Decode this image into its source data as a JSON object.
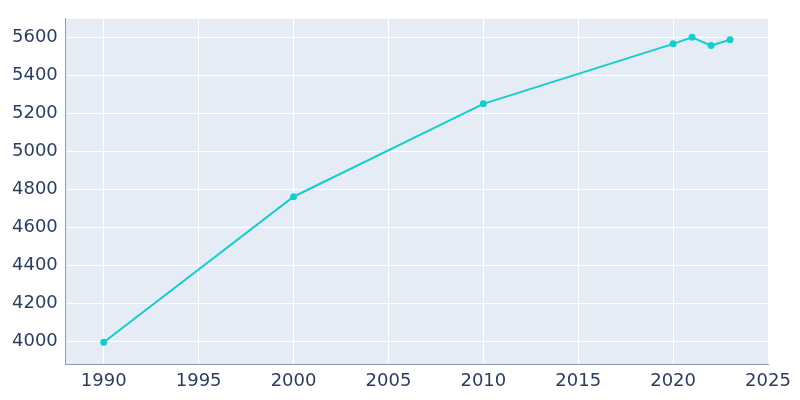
{
  "chart_data": {
    "type": "line",
    "x": [
      1990,
      2000,
      2010,
      2020,
      2021,
      2022,
      2023
    ],
    "values": [
      3997,
      4763,
      5252,
      5568,
      5603,
      5559,
      5590
    ],
    "color": "#17cccc",
    "marker": "circle",
    "xlim": [
      1988,
      2025
    ],
    "xticks": [
      1990,
      1995,
      2000,
      2005,
      2010,
      2015,
      2020,
      2025
    ],
    "ylim": [
      3880,
      5700
    ],
    "yticks": [
      4000,
      4200,
      4400,
      4600,
      4800,
      5000,
      5200,
      5400,
      5600
    ],
    "grid": true
  }
}
